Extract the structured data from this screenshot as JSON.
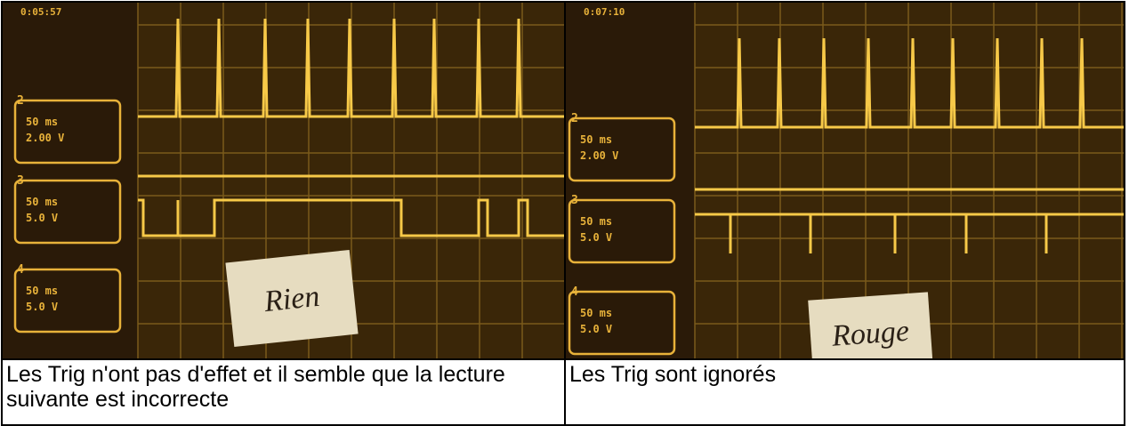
{
  "cells": [
    {
      "photo": {
        "timestamp": "0:05:57",
        "channels": [
          {
            "number": "2",
            "time": "50 ms",
            "volts": "2.00 V"
          },
          {
            "number": "3",
            "time": "50 ms",
            "volts": "5.0 V"
          },
          {
            "number": "4",
            "time": "50 ms",
            "volts": "5.0 V"
          }
        ],
        "note": "Rien"
      },
      "caption": "Les Trig n'ont pas d'effet et il semble que la lecture suivante est incorrecte"
    },
    {
      "photo": {
        "timestamp": "0:07:10",
        "channels": [
          {
            "number": "2",
            "time": "50 ms",
            "volts": "2.00 V"
          },
          {
            "number": "3",
            "time": "50 ms",
            "volts": "5.0 V"
          },
          {
            "number": "4",
            "time": "50 ms",
            "volts": "5.0 V"
          }
        ],
        "note": "Rouge"
      },
      "caption": "Les Trig sont ignorés"
    }
  ]
}
